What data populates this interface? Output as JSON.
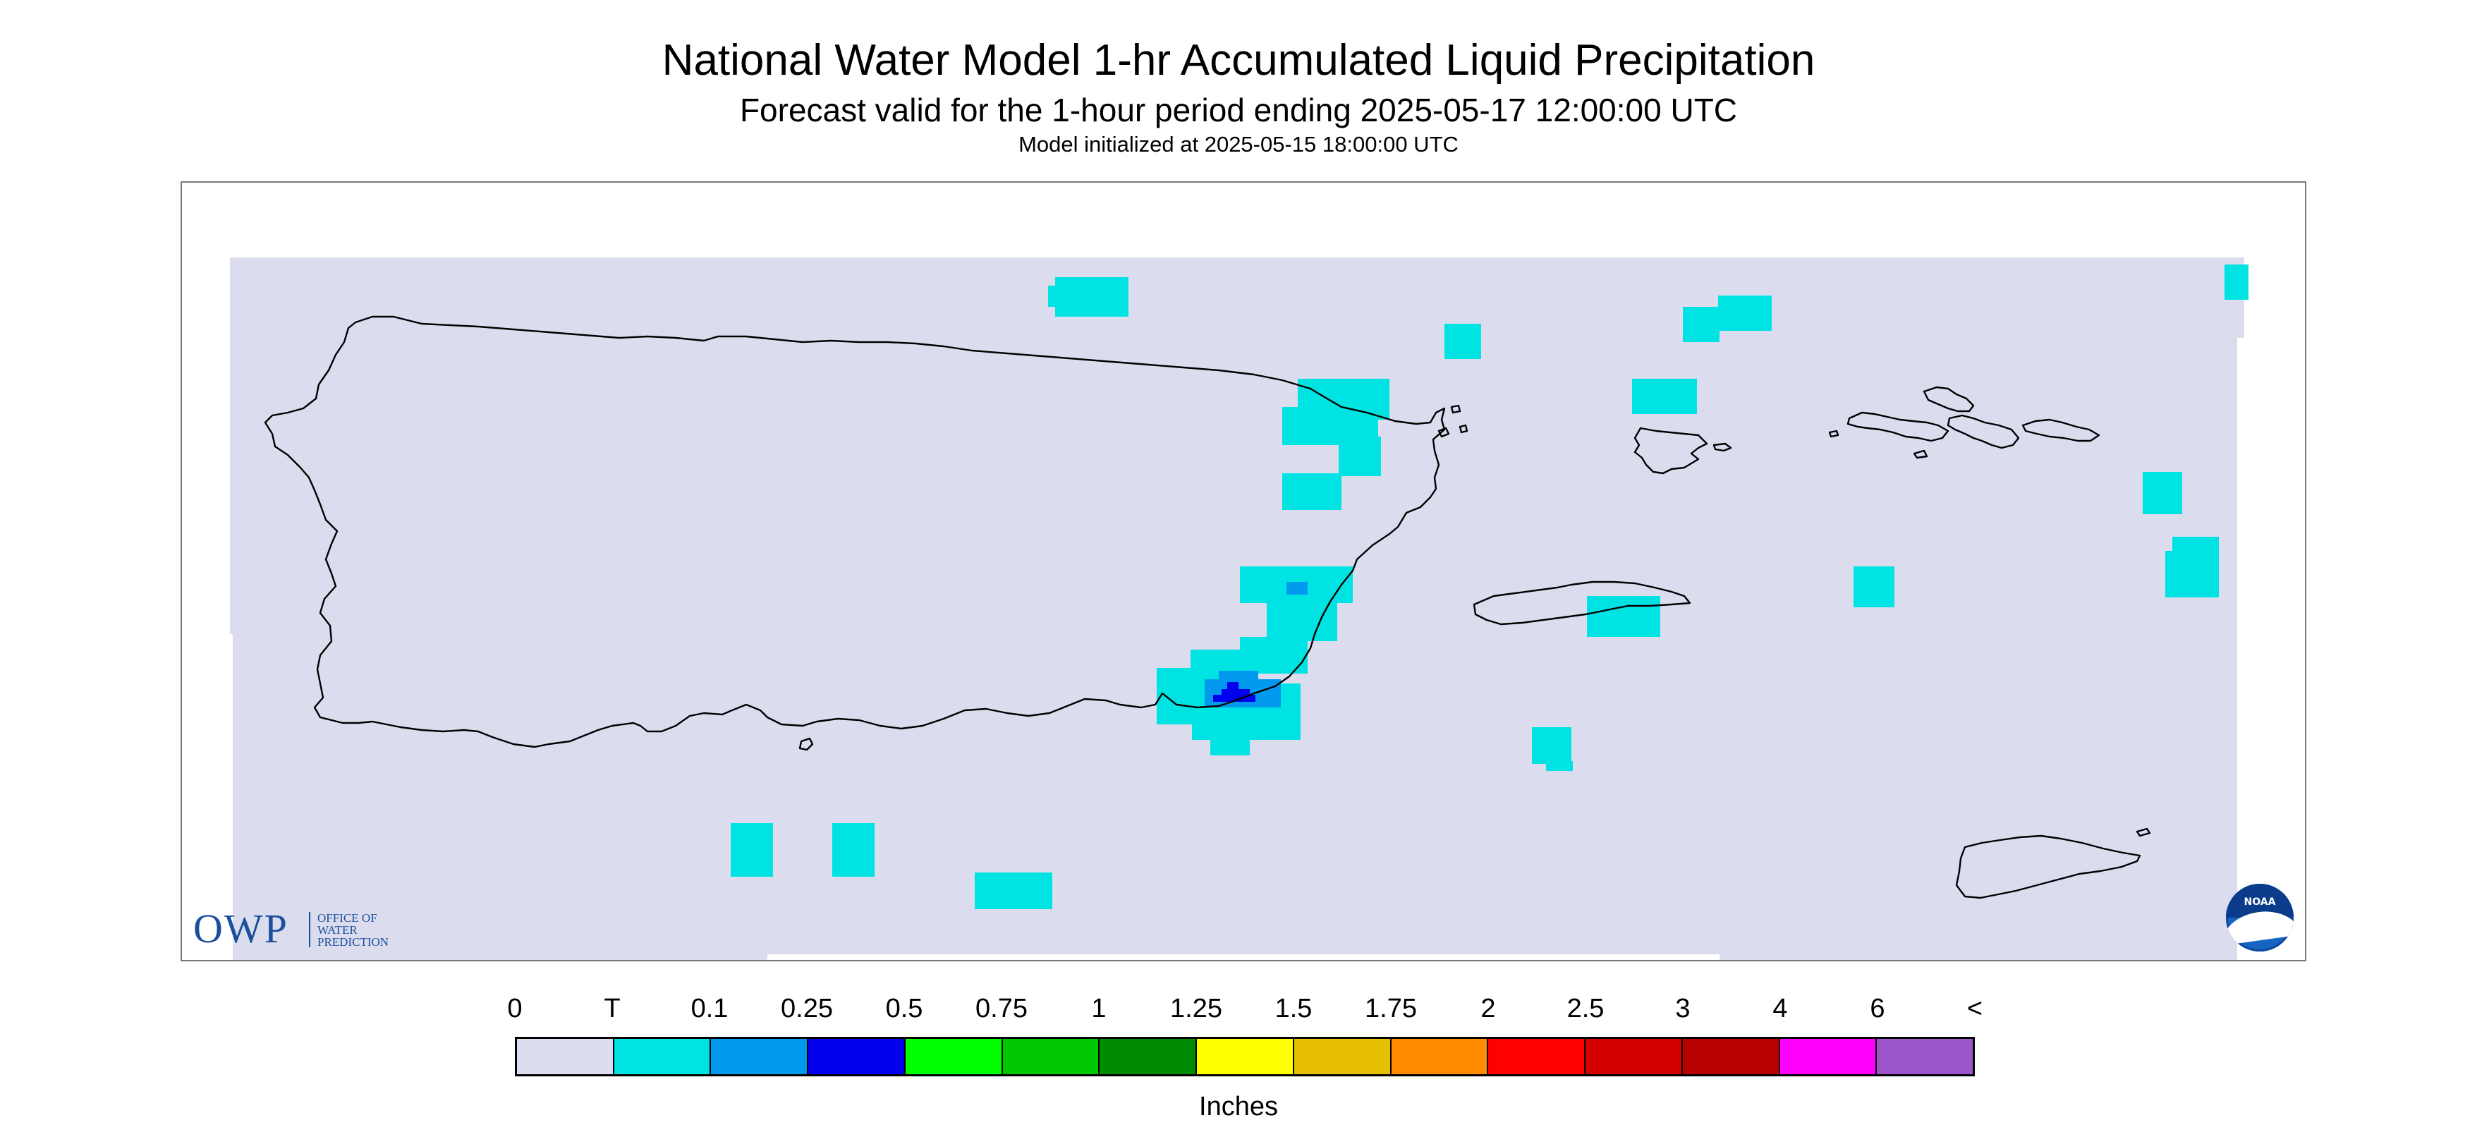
{
  "title": "National Water Model 1-hr Accumulated Liquid Precipitation",
  "subtitle": "Forecast valid for the 1-hour period ending 2025-05-17 12:00:00 UTC",
  "initialized": "Model initialized at 2025-05-15 18:00:00 UTC",
  "logos": {
    "owp_letters": "OWP",
    "owp_lines": [
      "OFFICE OF",
      "WATER",
      "PREDICTION"
    ],
    "noaa": "NOAA"
  },
  "legend": {
    "units": "Inches",
    "labels": [
      "0",
      "T",
      "0.1",
      "0.25",
      "0.5",
      "0.75",
      "1",
      "1.25",
      "1.5",
      "1.75",
      "2",
      "2.5",
      "3",
      "4",
      "6",
      "<"
    ],
    "colors": [
      "#dcdcef",
      "#00e3e3",
      "#0099ee",
      "#0000ee",
      "#00ff00",
      "#00c800",
      "#008c00",
      "#ffff00",
      "#e6bf00",
      "#ff8c00",
      "#ff0000",
      "#d40000",
      "#b80000",
      "#ff00ff",
      "#9955c9"
    ]
  },
  "map": {
    "background_color": "#dcdcef",
    "coastline_color": "#000000"
  }
}
